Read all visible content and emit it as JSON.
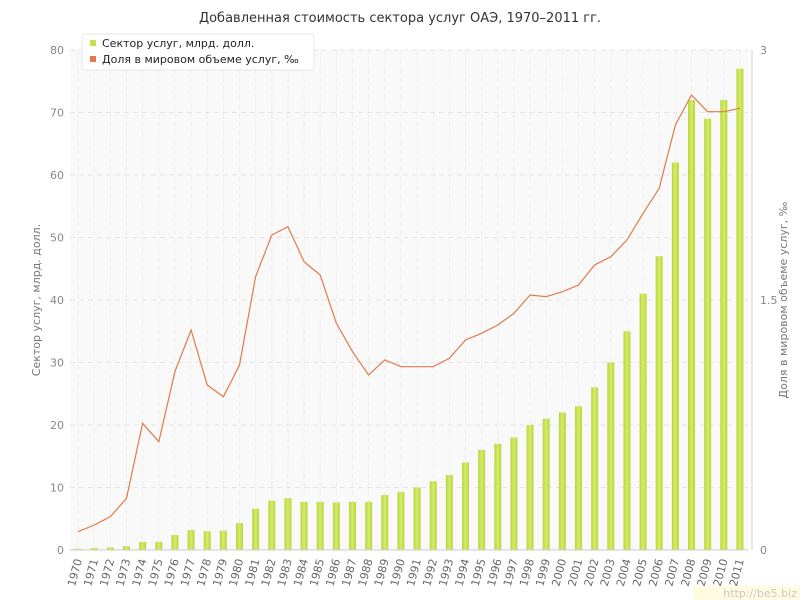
{
  "chart_data": {
    "type": "bar+line",
    "title": "Добавленная стоимость сектора услуг ОАЭ, 1970–2011 гг.",
    "x": [
      "1970",
      "1971",
      "1972",
      "1973",
      "1974",
      "1975",
      "1976",
      "1977",
      "1978",
      "1979",
      "1980",
      "1981",
      "1982",
      "1983",
      "1984",
      "1985",
      "1986",
      "1987",
      "1988",
      "1989",
      "1990",
      "1991",
      "1992",
      "1993",
      "1994",
      "1995",
      "1996",
      "1997",
      "1998",
      "1999",
      "2000",
      "2001",
      "2002",
      "2003",
      "2004",
      "2005",
      "2006",
      "2007",
      "2008",
      "2009",
      "2010",
      "2011"
    ],
    "series": [
      {
        "name": "Сектор услуг, млрд. долл.",
        "type": "bar",
        "axis": "left",
        "color": "#c5e04a",
        "values": [
          0.2,
          0.3,
          0.4,
          0.6,
          1.3,
          1.3,
          2.4,
          3.2,
          3.0,
          3.1,
          4.3,
          6.6,
          7.9,
          8.3,
          7.7,
          7.7,
          7.6,
          7.7,
          7.7,
          8.8,
          9.3,
          10.0,
          11.0,
          12.0,
          14.0,
          16.0,
          17.0,
          18.0,
          20.0,
          21.0,
          22.0,
          23.0,
          26.0,
          30.0,
          35.0,
          41.0,
          47.0,
          62.0,
          72.0,
          69.0,
          72.0,
          77.0
        ]
      },
      {
        "name": "Доля в мировом объеме услуг, ‰",
        "type": "line",
        "axis": "right",
        "color": "#e07a4a",
        "values": [
          0.11,
          0.15,
          0.2,
          0.31,
          0.76,
          0.65,
          1.07,
          1.32,
          0.99,
          0.92,
          1.11,
          1.64,
          1.89,
          1.94,
          1.73,
          1.65,
          1.36,
          1.19,
          1.05,
          1.14,
          1.1,
          1.1,
          1.1,
          1.15,
          1.26,
          1.3,
          1.35,
          1.42,
          1.53,
          1.52,
          1.55,
          1.59,
          1.71,
          1.76,
          1.86,
          2.02,
          2.17,
          2.55,
          2.73,
          2.63,
          2.63,
          2.65
        ]
      }
    ],
    "ylabel_left": "Сектор услуг, млрд. долл.",
    "ylabel_right": "Доля в мировом объеме услуг, ‰",
    "ylim_left": [
      0,
      80
    ],
    "yticks_left": [
      "0",
      "10",
      "20",
      "30",
      "40",
      "50",
      "60",
      "70",
      "80"
    ],
    "ylim_right": [
      0,
      3
    ],
    "yticks_right": [
      "0",
      "1.5",
      "3"
    ],
    "grid": true,
    "legend_placement": "top-left"
  },
  "watermark": "http://be5.biz"
}
